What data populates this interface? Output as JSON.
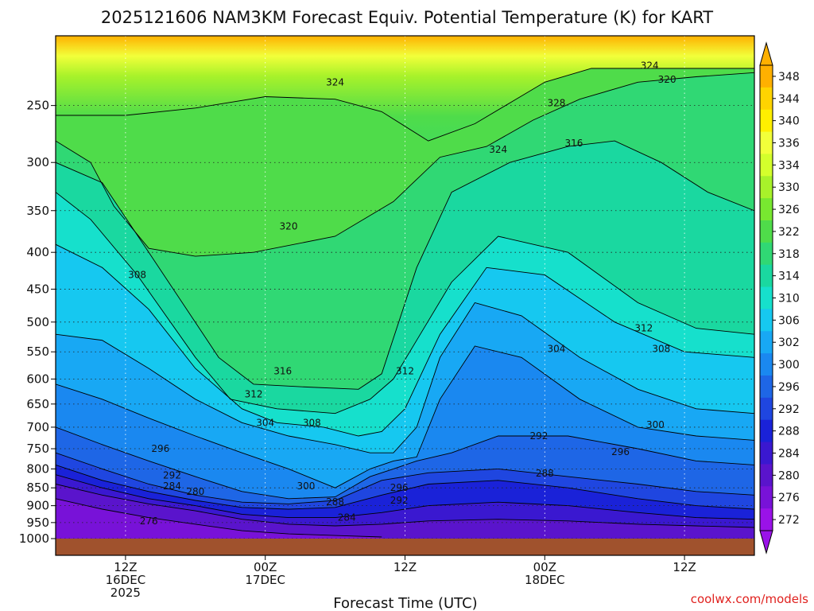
{
  "chart_data": {
    "type": "heatmap",
    "title": "2025121606 NAM3KM Forecast Equiv. Potential Temperature (K) for KART",
    "xlabel": "Forecast Time (UTC)",
    "ylabel": "",
    "credit": "coolwx.com/models",
    "y_scale": "log",
    "ylim": [
      1000,
      200
    ],
    "y_ticks": [
      "250",
      "300",
      "350",
      "400",
      "450",
      "500",
      "550",
      "600",
      "650",
      "700",
      "750",
      "800",
      "850",
      "900",
      "950",
      "1000"
    ],
    "x_ticks": [
      {
        "hour": "12Z",
        "date": "16DEC",
        "year": "2025"
      },
      {
        "hour": "00Z",
        "date": "17DEC",
        "year": ""
      },
      {
        "hour": "12Z",
        "date": "",
        "year": ""
      },
      {
        "hour": "00Z",
        "date": "18DEC",
        "year": ""
      },
      {
        "hour": "12Z",
        "date": "",
        "year": ""
      }
    ],
    "colorbar_levels": [
      "348",
      "344",
      "340",
      "336",
      "334",
      "330",
      "326",
      "322",
      "318",
      "314",
      "310",
      "306",
      "302",
      "300",
      "296",
      "292",
      "288",
      "284",
      "280",
      "276",
      "272"
    ],
    "colorbar_colors": [
      "#ffb000",
      "#ffd400",
      "#ffef00",
      "#f2ff3a",
      "#d4ff2c",
      "#a8f22a",
      "#78e830",
      "#4fdc4a",
      "#30d874",
      "#1ad8a0",
      "#16e0cc",
      "#16c8f0",
      "#18a8f4",
      "#1a88f0",
      "#1e66e6",
      "#1f46e0",
      "#1a22d8",
      "#3a18d0",
      "#5a14cc",
      "#7812d8",
      "#9a12e8"
    ],
    "grid": true,
    "series": [
      {
        "name": "324",
        "x": [
          0.0,
          6.0,
          12.0,
          18.0,
          24.0,
          28.0,
          32.0,
          36.0,
          42.0,
          46.0,
          50.0,
          54.0,
          60.0
        ],
        "y": [
          258,
          258,
          252,
          243,
          245,
          255,
          280,
          265,
          232,
          222,
          222,
          222,
          222
        ]
      },
      {
        "name": "320",
        "x": [
          0.0,
          3.0,
          5.0,
          8.0,
          12.0,
          17.0,
          24.0,
          29.0,
          33.0,
          37.0,
          41.0,
          45.0,
          50.0,
          55.0,
          60.0
        ],
        "y": [
          280,
          300,
          345,
          395,
          405,
          400,
          380,
          340,
          295,
          285,
          262,
          245,
          232,
          228,
          225
        ]
      },
      {
        "name": "316",
        "x": [
          0.0,
          4.0,
          8.0,
          14.0,
          17.0,
          21.0,
          26.0,
          28.0,
          31.0,
          34.0,
          39.0,
          44.0,
          48.0,
          52.0,
          56.0,
          60.0
        ],
        "y": [
          300,
          320,
          400,
          560,
          610,
          615,
          620,
          590,
          420,
          330,
          300,
          285,
          280,
          300,
          330,
          350
        ]
      },
      {
        "name": "312",
        "x": [
          0.0,
          3.0,
          7.0,
          12.0,
          15.0,
          19.0,
          24.0,
          27.0,
          29.0,
          31.0,
          34.0,
          38.0,
          44.0,
          50.0,
          55.0,
          60.0
        ],
        "y": [
          330,
          360,
          430,
          560,
          640,
          660,
          670,
          640,
          600,
          530,
          440,
          380,
          400,
          470,
          510,
          520
        ]
      },
      {
        "name": "308",
        "x": [
          0.0,
          4.0,
          8.0,
          12.0,
          16.0,
          19.0,
          23.0,
          26.0,
          28.0,
          30.0,
          33.0,
          37.0,
          42.0,
          48.0,
          54.0,
          60.0
        ],
        "y": [
          390,
          420,
          480,
          580,
          660,
          690,
          700,
          720,
          710,
          660,
          520,
          420,
          430,
          500,
          550,
          560
        ]
      },
      {
        "name": "304",
        "x": [
          0.0,
          4.0,
          8.0,
          12.0,
          16.0,
          20.0,
          24.0,
          27.0,
          29.0,
          31.0,
          33.0,
          36.0,
          40.0,
          45.0,
          50.0,
          55.0,
          60.0
        ],
        "y": [
          520,
          530,
          580,
          640,
          690,
          720,
          740,
          760,
          760,
          700,
          560,
          470,
          490,
          560,
          620,
          660,
          670
        ]
      },
      {
        "name": "300",
        "x": [
          0.0,
          4.0,
          8.0,
          12.0,
          16.0,
          20.0,
          24.0,
          27.0,
          29.0,
          31.0,
          33.0,
          36.0,
          40.0,
          45.0,
          50.0,
          55.0,
          60.0
        ],
        "y": [
          610,
          640,
          680,
          720,
          760,
          800,
          850,
          800,
          780,
          770,
          640,
          540,
          560,
          640,
          700,
          720,
          730
        ]
      },
      {
        "name": "296",
        "x": [
          0.0,
          4.0,
          8.0,
          12.0,
          16.0,
          20.0,
          24.0,
          27.0,
          29.0,
          31.0,
          34.0,
          38.0,
          44.0,
          50.0,
          55.0,
          60.0
        ],
        "y": [
          700,
          740,
          780,
          820,
          860,
          880,
          875,
          820,
          800,
          780,
          760,
          720,
          720,
          750,
          780,
          790
        ]
      },
      {
        "name": "292",
        "x": [
          0.0,
          4.0,
          8.0,
          12.0,
          16.0,
          20.0,
          24.0,
          28.0,
          32.0,
          38.0,
          44.0,
          50.0,
          55.0,
          60.0
        ],
        "y": [
          760,
          800,
          840,
          870,
          890,
          895,
          885,
          830,
          810,
          800,
          820,
          840,
          860,
          870
        ]
      },
      {
        "name": "288",
        "x": [
          0.0,
          4.0,
          8.0,
          12.0,
          16.0,
          20.0,
          24.0,
          28.0,
          32.0,
          38.0,
          44.0,
          50.0,
          55.0,
          60.0
        ],
        "y": [
          790,
          830,
          860,
          885,
          905,
          910,
          905,
          870,
          840,
          830,
          850,
          880,
          900,
          910
        ]
      },
      {
        "name": "284",
        "x": [
          0.0,
          4.0,
          8.0,
          12.0,
          16.0,
          20.0,
          24.0,
          28.0,
          32.0,
          38.0,
          44.0,
          50.0,
          55.0,
          60.0
        ],
        "y": [
          815,
          850,
          880,
          900,
          925,
          935,
          935,
          920,
          900,
          890,
          900,
          920,
          935,
          940
        ]
      },
      {
        "name": "280",
        "x": [
          0.0,
          4.0,
          8.0,
          12.0,
          16.0,
          20.0,
          24.0,
          28.0,
          32.0,
          38.0,
          44.0,
          50.0,
          55.0,
          60.0
        ],
        "y": [
          840,
          870,
          895,
          915,
          940,
          955,
          960,
          955,
          945,
          940,
          945,
          955,
          960,
          965
        ]
      },
      {
        "name": "276",
        "x": [
          0.0,
          4.0,
          8.0,
          12.0,
          16.0,
          20.0,
          24.0,
          28.0
        ],
        "y": [
          880,
          910,
          935,
          955,
          975,
          985,
          990,
          995
        ]
      }
    ],
    "contour_labels": [
      {
        "text": "324",
        "x": 24.0,
        "y": 232
      },
      {
        "text": "324",
        "x": 38.0,
        "y": 288
      },
      {
        "text": "328",
        "x": 43.0,
        "y": 248
      },
      {
        "text": "324",
        "x": 51.0,
        "y": 220
      },
      {
        "text": "320",
        "x": 52.5,
        "y": 230
      },
      {
        "text": "316",
        "x": 44.5,
        "y": 282
      },
      {
        "text": "320",
        "x": 20.0,
        "y": 368
      },
      {
        "text": "308",
        "x": 7.0,
        "y": 430
      },
      {
        "text": "312",
        "x": 50.5,
        "y": 510
      },
      {
        "text": "308",
        "x": 52.0,
        "y": 545
      },
      {
        "text": "304",
        "x": 43.0,
        "y": 545
      },
      {
        "text": "316",
        "x": 19.5,
        "y": 585
      },
      {
        "text": "312",
        "x": 17.0,
        "y": 630
      },
      {
        "text": "312",
        "x": 30.0,
        "y": 585
      },
      {
        "text": "304",
        "x": 18.0,
        "y": 690
      },
      {
        "text": "308",
        "x": 22.0,
        "y": 690
      },
      {
        "text": "300",
        "x": 51.5,
        "y": 695
      },
      {
        "text": "292",
        "x": 41.5,
        "y": 720
      },
      {
        "text": "296",
        "x": 9.0,
        "y": 750
      },
      {
        "text": "296",
        "x": 48.5,
        "y": 758
      },
      {
        "text": "292",
        "x": 10.0,
        "y": 817
      },
      {
        "text": "288",
        "x": 42.0,
        "y": 812
      },
      {
        "text": "284",
        "x": 10.0,
        "y": 845
      },
      {
        "text": "280",
        "x": 12.0,
        "y": 860
      },
      {
        "text": "300",
        "x": 21.5,
        "y": 845
      },
      {
        "text": "296",
        "x": 29.5,
        "y": 850
      },
      {
        "text": "292",
        "x": 29.5,
        "y": 885
      },
      {
        "text": "288",
        "x": 24.0,
        "y": 890
      },
      {
        "text": "284",
        "x": 25.0,
        "y": 935
      },
      {
        "text": "276",
        "x": 8.0,
        "y": 945
      }
    ]
  }
}
